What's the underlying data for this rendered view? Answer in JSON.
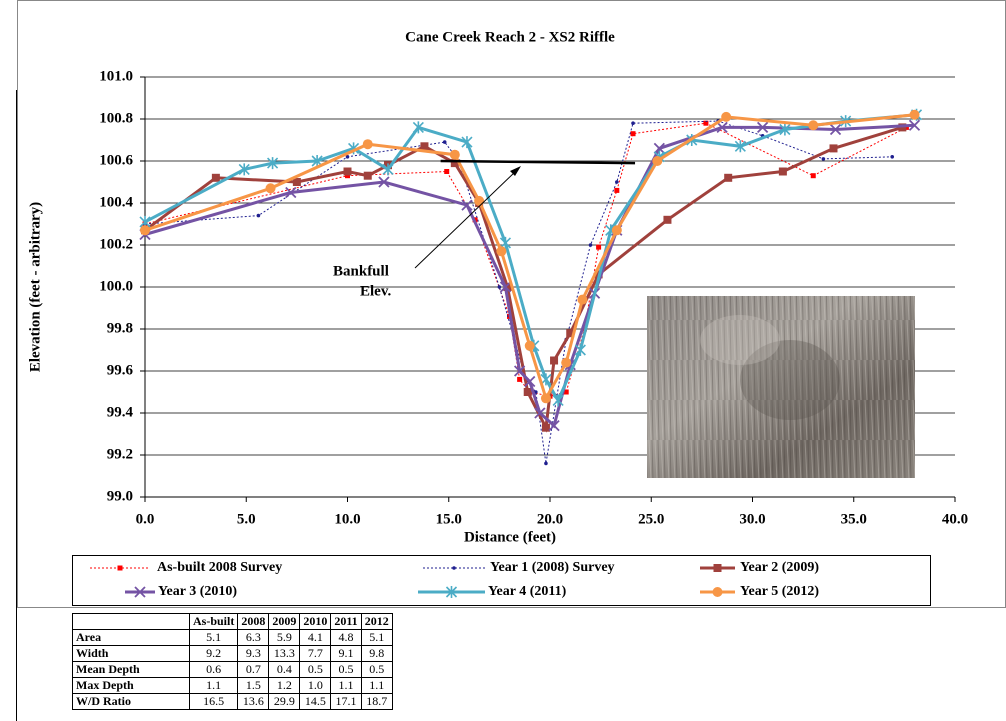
{
  "chart_data": {
    "type": "line",
    "title": "Cane Creek Reach 2 - XS2 Riffle",
    "x_label": "Distance (feet)",
    "y_label": "Elevation (feet - arbitrary)",
    "xlim": [
      0,
      40
    ],
    "ylim": [
      99.0,
      101.0
    ],
    "grid": true,
    "xticks": [
      {
        "value": 0,
        "label": "0.0"
      },
      {
        "value": 5,
        "label": "5.0"
      },
      {
        "value": 10,
        "label": "10.0"
      },
      {
        "value": 15,
        "label": "15.0"
      },
      {
        "value": 20,
        "label": "20.0"
      },
      {
        "value": 25,
        "label": "25.0"
      },
      {
        "value": 30,
        "label": "30.0"
      },
      {
        "value": 35,
        "label": "35.0"
      },
      {
        "value": 40,
        "label": "40.0"
      }
    ],
    "yticks": [
      {
        "value": 99.0,
        "label": "99.0"
      },
      {
        "value": 99.2,
        "label": "99.2"
      },
      {
        "value": 99.4,
        "label": "99.4"
      },
      {
        "value": 99.6,
        "label": "99.6"
      },
      {
        "value": 99.8,
        "label": "99.8"
      },
      {
        "value": 100.0,
        "label": "100.0"
      },
      {
        "value": 100.2,
        "label": "100.2"
      },
      {
        "value": 100.4,
        "label": "100.4"
      },
      {
        "value": 100.6,
        "label": "100.6"
      },
      {
        "value": 100.8,
        "label": "100.8"
      },
      {
        "value": 101.0,
        "label": "101.0"
      }
    ],
    "series": [
      {
        "name": "As-built 2008 Survey",
        "color": "#ff0000",
        "style": "dotted",
        "marker": "square-small",
        "x": [
          0,
          10.0,
          14.9,
          16.3,
          18.0,
          18.5,
          19.0,
          20.0,
          20.8,
          21.7,
          22.4,
          23.3,
          24.1,
          27.7,
          33.0,
          37.6
        ],
        "values": [
          100.3,
          100.53,
          100.55,
          100.32,
          99.86,
          99.56,
          99.5,
          99.48,
          99.5,
          99.8,
          100.19,
          100.46,
          100.73,
          100.78,
          100.53,
          100.76
        ]
      },
      {
        "name": "Year 1 (2008) Survey",
        "color": "#1f1f8f",
        "style": "dotted",
        "marker": "dot",
        "x": [
          0,
          5.6,
          10.0,
          14.8,
          15.5,
          17.5,
          18.8,
          19.3,
          19.8,
          20.8,
          22.0,
          23.3,
          24.1,
          28.3,
          30.5,
          33.5,
          36.9
        ],
        "values": [
          100.3,
          100.34,
          100.62,
          100.69,
          100.6,
          100.0,
          99.56,
          99.5,
          99.16,
          99.75,
          100.2,
          100.5,
          100.78,
          100.79,
          100.72,
          100.61,
          100.62
        ]
      },
      {
        "name": "Year 2 (2009)",
        "color": "#a0413c",
        "style": "solid",
        "marker": "square",
        "x": [
          0,
          3.5,
          7.5,
          10.0,
          11.0,
          12.0,
          13.8,
          15.3,
          16.5,
          17.9,
          18.9,
          19.8,
          20.2,
          21.0,
          22.4,
          25.8,
          28.8,
          31.5,
          34.0,
          37.4
        ],
        "values": [
          100.27,
          100.52,
          100.5,
          100.55,
          100.53,
          100.58,
          100.67,
          100.59,
          100.4,
          100.0,
          99.5,
          99.33,
          99.65,
          99.78,
          100.06,
          100.32,
          100.52,
          100.55,
          100.66,
          100.76
        ]
      },
      {
        "name": "Year 3 (2010)",
        "color": "#7453a4",
        "style": "solid",
        "marker": "x",
        "x": [
          0,
          7.2,
          11.8,
          15.9,
          17.8,
          18.5,
          19.0,
          19.5,
          20.2,
          21.0,
          22.2,
          23.3,
          25.4,
          28.5,
          30.5,
          34.1,
          38.0
        ],
        "values": [
          100.25,
          100.45,
          100.5,
          100.39,
          100.0,
          99.6,
          99.55,
          99.4,
          99.34,
          99.63,
          99.97,
          100.27,
          100.66,
          100.76,
          100.76,
          100.75,
          100.77
        ]
      },
      {
        "name": "Year 4 (2011)",
        "color": "#4bacc6",
        "style": "solid",
        "marker": "asterisk",
        "x": [
          0,
          4.9,
          6.3,
          8.5,
          10.3,
          12.0,
          13.5,
          15.9,
          17.8,
          19.2,
          19.8,
          20.4,
          21.5,
          23.0,
          25.4,
          27.0,
          29.4,
          31.6,
          34.6,
          38.1
        ],
        "values": [
          100.31,
          100.56,
          100.59,
          100.6,
          100.66,
          100.56,
          100.76,
          100.69,
          100.21,
          99.72,
          99.56,
          99.46,
          99.7,
          100.27,
          100.62,
          100.7,
          100.67,
          100.75,
          100.79,
          100.82
        ]
      },
      {
        "name": "Year 5 (2012)",
        "color": "#f79646",
        "style": "solid",
        "marker": "circle",
        "x": [
          0,
          6.2,
          11.0,
          15.3,
          16.5,
          17.6,
          19.0,
          19.8,
          20.8,
          21.6,
          23.3,
          25.3,
          28.7,
          33.0,
          38.0
        ],
        "values": [
          100.27,
          100.47,
          100.68,
          100.63,
          100.41,
          100.17,
          99.72,
          99.47,
          99.64,
          99.94,
          100.27,
          100.6,
          100.81,
          100.77,
          100.82
        ]
      }
    ],
    "bankfull": {
      "label": [
        "Bankfull",
        "Elev."
      ],
      "x": [
        14.6,
        24.2
      ],
      "values": [
        100.6,
        100.59
      ]
    }
  },
  "table": {
    "columns": [
      "As-built",
      "2008",
      "2009",
      "2010",
      "2011",
      "2012"
    ],
    "rows": [
      {
        "label": "Area",
        "values": [
          "5.1",
          "6.3",
          "5.9",
          "4.1",
          "4.8",
          "5.1"
        ]
      },
      {
        "label": "Width",
        "values": [
          "9.2",
          "9.3",
          "13.3",
          "7.7",
          "9.1",
          "9.8"
        ]
      },
      {
        "label": "Mean Depth",
        "values": [
          "0.6",
          "0.7",
          "0.4",
          "0.5",
          "0.5",
          "0.5"
        ]
      },
      {
        "label": "Max Depth",
        "values": [
          "1.1",
          "1.5",
          "1.2",
          "1.0",
          "1.1",
          "1.1"
        ]
      },
      {
        "label": "W/D Ratio",
        "values": [
          "16.5",
          "13.6",
          "29.9",
          "14.5",
          "17.1",
          "18.7"
        ]
      }
    ]
  }
}
